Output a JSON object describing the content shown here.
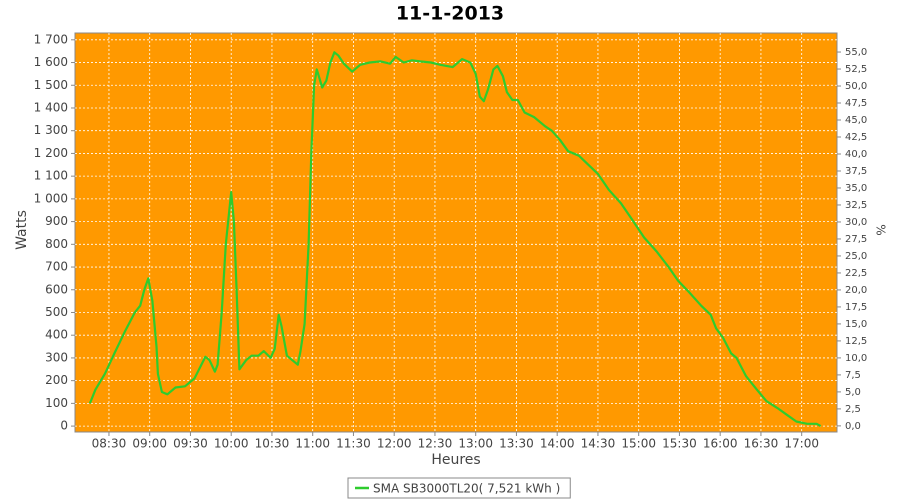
{
  "chart_data": {
    "type": "line",
    "title": "11-1-2013",
    "y_label": "Watts",
    "x_label": "Heures",
    "y2_label": "%",
    "x": [
      "08:16",
      "08:20",
      "08:27",
      "08:34",
      "08:42",
      "08:49",
      "08:53",
      "08:56",
      "08:59",
      "09:02",
      "09:05",
      "09:06",
      "09:09",
      "09:13",
      "09:19",
      "09:26",
      "09:33",
      "09:41",
      "09:44",
      "09:48",
      "09:50",
      "09:53",
      "09:56",
      "10:00",
      "10:02",
      "10:04",
      "10:06",
      "10:11",
      "10:15",
      "10:20",
      "10:24",
      "10:29",
      "10:32",
      "10:35",
      "10:37",
      "10:41",
      "10:45",
      "10:49",
      "10:51",
      "10:54",
      "10:57",
      "10:59",
      "11:01",
      "11:03",
      "11:07",
      "11:10",
      "11:13",
      "11:16",
      "11:19",
      "11:23",
      "11:29",
      "11:35",
      "11:42",
      "11:50",
      "11:57",
      "12:01",
      "12:07",
      "12:13",
      "12:19",
      "12:27",
      "12:34",
      "12:43",
      "12:50",
      "12:56",
      "13:00",
      "13:03",
      "13:06",
      "13:09",
      "13:13",
      "13:16",
      "13:20",
      "13:23",
      "13:27",
      "13:31",
      "13:36",
      "13:43",
      "13:51",
      "13:56",
      "14:02",
      "14:08",
      "14:16",
      "14:23",
      "14:30",
      "14:38",
      "14:47",
      "14:55",
      "15:04",
      "15:13",
      "15:22",
      "15:29",
      "15:37",
      "15:46",
      "15:53",
      "15:57",
      "16:02",
      "16:08",
      "16:12",
      "16:19",
      "16:27",
      "16:34",
      "16:42",
      "16:49",
      "16:56",
      "17:04",
      "17:11",
      "17:14"
    ],
    "series": [
      {
        "name": "SMA SB3000TL20( 7,521 kWh )",
        "color": "#2ecc2e",
        "values": [
          100,
          160,
          230,
          320,
          420,
          500,
          530,
          600,
          650,
          550,
          350,
          230,
          150,
          140,
          170,
          175,
          210,
          305,
          290,
          240,
          270,
          500,
          800,
          1030,
          900,
          600,
          250,
          290,
          310,
          310,
          330,
          300,
          340,
          490,
          440,
          310,
          290,
          270,
          330,
          450,
          800,
          1200,
          1500,
          1570,
          1490,
          1520,
          1600,
          1645,
          1630,
          1595,
          1560,
          1590,
          1600,
          1605,
          1595,
          1625,
          1600,
          1610,
          1605,
          1600,
          1590,
          1580,
          1615,
          1600,
          1550,
          1450,
          1430,
          1480,
          1570,
          1585,
          1540,
          1470,
          1435,
          1435,
          1380,
          1360,
          1320,
          1300,
          1260,
          1210,
          1190,
          1150,
          1110,
          1040,
          980,
          910,
          830,
          770,
          700,
          640,
          590,
          530,
          490,
          430,
          390,
          320,
          300,
          220,
          160,
          110,
          80,
          50,
          20,
          10,
          10,
          0
        ]
      }
    ],
    "xlim": [
      "08:05",
      "17:26"
    ],
    "xticks": [
      "08:30",
      "09:00",
      "09:30",
      "10:00",
      "10:30",
      "11:00",
      "11:30",
      "12:00",
      "12:30",
      "13:00",
      "13:30",
      "14:00",
      "14:30",
      "15:00",
      "15:30",
      "16:00",
      "16:30",
      "17:00"
    ],
    "ylim": [
      -26,
      1730
    ],
    "yticks": [
      0,
      100,
      200,
      300,
      400,
      500,
      600,
      700,
      800,
      900,
      {
        "value": 1000,
        "label": "1 000"
      },
      {
        "value": 1100,
        "label": "1 100"
      },
      {
        "value": 1200,
        "label": "1 200"
      },
      {
        "value": 1300,
        "label": "1 300"
      },
      {
        "value": 1400,
        "label": "1 400"
      },
      {
        "value": 1500,
        "label": "1 500"
      },
      {
        "value": 1600,
        "label": "1 600"
      },
      {
        "value": 1700,
        "label": "1 700"
      }
    ],
    "y2lim": [
      -0.9,
      57.8
    ],
    "y2ticks": [
      {
        "value": 0,
        "label": "0,0"
      },
      {
        "value": 2.5,
        "label": "2,5"
      },
      {
        "value": 5,
        "label": "5,0"
      },
      {
        "value": 7.5,
        "label": "7,5"
      },
      {
        "value": 10,
        "label": "10,0"
      },
      {
        "value": 12.5,
        "label": "12,5"
      },
      {
        "value": 15,
        "label": "15,0"
      },
      {
        "value": 17.5,
        "label": "17,5"
      },
      {
        "value": 20,
        "label": "20,0"
      },
      {
        "value": 22.5,
        "label": "22,5"
      },
      {
        "value": 25,
        "label": "25,0"
      },
      {
        "value": 27.5,
        "label": "27,5"
      },
      {
        "value": 30,
        "label": "30,0"
      },
      {
        "value": 32.5,
        "label": "32,5"
      },
      {
        "value": 35,
        "label": "35,0"
      },
      {
        "value": 37.5,
        "label": "37,5"
      },
      {
        "value": 40,
        "label": "40,0"
      },
      {
        "value": 42.5,
        "label": "42,5"
      },
      {
        "value": 45,
        "label": "45,0"
      },
      {
        "value": 47.5,
        "label": "47,5"
      },
      {
        "value": 50,
        "label": "50,0"
      },
      {
        "value": 52.5,
        "label": "52,5"
      },
      {
        "value": 55,
        "label": "55,0"
      }
    ],
    "grid": true,
    "plot_background": "#ff9900",
    "legend": "bottom"
  }
}
